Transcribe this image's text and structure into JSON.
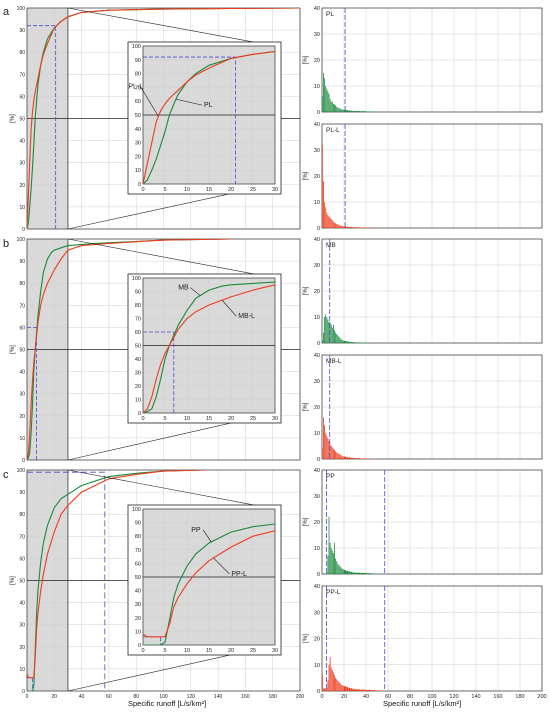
{
  "figure": {
    "x_axis_title_left": "Specific runoff [L/s/km²]",
    "x_axis_title_right": "Specific runoff [L/s/km²]"
  },
  "colors": {
    "native": "#1a8a3c",
    "lagged": "#ee3b1c",
    "dashed": "#4a4ad8",
    "shade": "#d9d9d9",
    "grid": "#cfcfcf"
  },
  "chart_data": [
    {
      "type": "line",
      "panel": "a",
      "ylabel": "[%]",
      "xlim": [
        0,
        200
      ],
      "ylim": [
        0,
        100
      ],
      "xticks": [
        0,
        20,
        40,
        60,
        80,
        100,
        120,
        140,
        160,
        180,
        200
      ],
      "yticks": [
        0,
        10,
        20,
        30,
        40,
        50,
        60,
        70,
        80,
        90,
        100
      ],
      "shaded_range": [
        0,
        30
      ],
      "guide": {
        "x": 21,
        "y": 92
      },
      "series": [
        {
          "name": "PL",
          "color": "#1a8a3c",
          "x": [
            0,
            1,
            2,
            3,
            4,
            5,
            6,
            7,
            8,
            10,
            12,
            15,
            20,
            25,
            30,
            40,
            60,
            100,
            150,
            200
          ],
          "y": [
            0,
            3,
            10,
            18,
            28,
            38,
            50,
            58,
            65,
            74,
            80,
            86,
            91,
            94,
            96,
            98,
            99,
            99.5,
            99.8,
            100
          ]
        },
        {
          "name": "PL-L",
          "color": "#ee3b1c",
          "x": [
            0,
            1,
            2,
            3,
            4,
            5,
            6,
            8,
            10,
            12,
            15,
            20,
            25,
            30,
            40,
            60,
            100,
            150,
            200
          ],
          "y": [
            0,
            15,
            30,
            45,
            53,
            58,
            62,
            68,
            74,
            79,
            84,
            91,
            94,
            96,
            98,
            99,
            99.5,
            99.8,
            100
          ]
        }
      ],
      "inset": {
        "xlim": [
          0,
          30
        ],
        "ylim": [
          0,
          100
        ],
        "xticks": [
          0,
          5,
          10,
          15,
          20,
          25,
          30
        ],
        "yticks": [
          0,
          10,
          20,
          30,
          40,
          50,
          60,
          70,
          80,
          90,
          100
        ],
        "labels": [
          "PL-L",
          "PL"
        ],
        "guide": {
          "x": 21,
          "y": 92
        }
      }
    },
    {
      "type": "line",
      "panel": "b",
      "ylabel": "[%]",
      "xlim": [
        0,
        200
      ],
      "ylim": [
        0,
        100
      ],
      "xticks": [
        0,
        20,
        40,
        60,
        80,
        100,
        120,
        140,
        160,
        180,
        200
      ],
      "yticks": [
        0,
        10,
        20,
        30,
        40,
        50,
        60,
        70,
        80,
        90,
        100
      ],
      "shaded_range": [
        0,
        30
      ],
      "guide": {
        "x": 7,
        "y": 60
      },
      "series": [
        {
          "name": "MB",
          "color": "#1a8a3c",
          "x": [
            0,
            1,
            2,
            3,
            4,
            5,
            6,
            8,
            10,
            12,
            15,
            18,
            20,
            25,
            30,
            50,
            100,
            150
          ],
          "y": [
            0,
            1,
            3,
            12,
            25,
            40,
            50,
            65,
            76,
            85,
            91,
            94,
            95,
            96,
            97,
            98,
            99.5,
            100
          ]
        },
        {
          "name": "MB-L",
          "color": "#ee3b1c",
          "x": [
            0,
            1,
            2,
            3,
            4,
            5,
            6,
            8,
            10,
            12,
            15,
            20,
            25,
            30,
            40,
            60,
            100,
            150
          ],
          "y": [
            0,
            3,
            12,
            25,
            36,
            44,
            50,
            62,
            70,
            75,
            80,
            86,
            91,
            95,
            97,
            98,
            99.5,
            100
          ]
        }
      ],
      "inset": {
        "xlim": [
          0,
          30
        ],
        "ylim": [
          0,
          100
        ],
        "xticks": [
          0,
          5,
          10,
          15,
          20,
          25,
          30
        ],
        "yticks": [
          0,
          10,
          20,
          30,
          40,
          50,
          60,
          70,
          80,
          90,
          100
        ],
        "labels": [
          "MB",
          "MB-L"
        ],
        "guide": {
          "x": 7,
          "y": 60
        }
      }
    },
    {
      "type": "line",
      "panel": "c",
      "ylabel": "[%]",
      "xlim": [
        0,
        200
      ],
      "ylim": [
        0,
        100
      ],
      "xticks": [
        0,
        20,
        40,
        60,
        80,
        100,
        120,
        140,
        160,
        180,
        200
      ],
      "yticks": [
        0,
        10,
        20,
        30,
        40,
        50,
        60,
        70,
        80,
        90,
        100
      ],
      "shaded_range": [
        0,
        30
      ],
      "guide": {
        "x": 4,
        "y": 6,
        "x2": 57,
        "y2": 99
      },
      "series": [
        {
          "name": "PP",
          "color": "#1a8a3c",
          "x": [
            0,
            1,
            2,
            3,
            4,
            5,
            6,
            7,
            8,
            10,
            12,
            15,
            20,
            25,
            30,
            40,
            60,
            80,
            100,
            130
          ],
          "y": [
            0,
            0,
            0,
            0,
            0,
            2,
            18,
            35,
            45,
            58,
            67,
            75,
            83,
            87,
            89,
            93,
            97,
            98.5,
            99.5,
            100
          ]
        },
        {
          "name": "PP-L",
          "color": "#ee3b1c",
          "x": [
            0,
            1,
            2,
            3,
            4,
            5,
            6,
            7,
            8,
            10,
            12,
            15,
            20,
            25,
            30,
            40,
            60,
            80,
            100,
            130
          ],
          "y": [
            8,
            6,
            6,
            6,
            6,
            6,
            15,
            28,
            35,
            45,
            53,
            62,
            72,
            80,
            84,
            90,
            96,
            98,
            99.5,
            100
          ]
        }
      ],
      "inset": {
        "xlim": [
          0,
          30
        ],
        "ylim": [
          0,
          100
        ],
        "xticks": [
          0,
          5,
          10,
          15,
          20,
          25,
          30
        ],
        "yticks": [
          0,
          10,
          20,
          30,
          40,
          50,
          60,
          70,
          80,
          90,
          100
        ],
        "labels": [
          "PP",
          "PP-L"
        ],
        "guide": {
          "x": 4,
          "y": 6
        }
      }
    },
    {
      "type": "bar",
      "panel": "PL",
      "label": "PL",
      "color": "#1a8a3c",
      "ylabel": "[%]",
      "xlim": [
        0,
        200
      ],
      "ylim": [
        0,
        40
      ],
      "xticks": [
        0,
        20,
        40,
        60,
        80,
        100,
        120,
        140,
        160,
        180,
        200
      ],
      "yticks": [
        0,
        10,
        20,
        30,
        40
      ],
      "vlines": [
        21
      ],
      "bins": [
        0,
        1,
        2,
        3,
        4,
        5,
        6,
        7,
        8,
        9,
        10,
        11,
        12,
        13,
        14,
        15,
        16,
        17,
        18,
        19,
        20,
        22,
        24,
        26,
        28,
        30,
        35,
        40,
        45,
        50
      ],
      "values": [
        6,
        15,
        13,
        10,
        9,
        8,
        7,
        5,
        4,
        4,
        3,
        3,
        2.5,
        2,
        1.8,
        1.5,
        1.3,
        1.1,
        1,
        0.9,
        0.8,
        0.7,
        0.6,
        0.5,
        0.4,
        0.35,
        0.3,
        0.2,
        0.15,
        0.1
      ]
    },
    {
      "type": "bar",
      "panel": "PL-L",
      "label": "PL-L",
      "color": "#ee3b1c",
      "ylabel": "[%]",
      "xlim": [
        0,
        200
      ],
      "ylim": [
        0,
        40
      ],
      "xticks": [
        0,
        20,
        40,
        60,
        80,
        100,
        120,
        140,
        160,
        180,
        200
      ],
      "yticks": [
        0,
        10,
        20,
        30,
        40
      ],
      "vlines": [
        21
      ],
      "bins": [
        0,
        1,
        2,
        3,
        4,
        5,
        6,
        7,
        8,
        9,
        10,
        11,
        12,
        13,
        14,
        15,
        16,
        17,
        18,
        19,
        20,
        22,
        24,
        26,
        28,
        30,
        35,
        40,
        45,
        50
      ],
      "values": [
        32,
        18,
        10,
        8,
        6,
        5,
        4.5,
        4,
        3.5,
        3,
        2.5,
        2,
        1.8,
        1.6,
        1.4,
        1.2,
        1,
        0.9,
        0.8,
        0.7,
        0.6,
        0.5,
        0.4,
        0.35,
        0.3,
        0.25,
        0.2,
        0.15,
        0.1,
        0.05
      ]
    },
    {
      "type": "bar",
      "panel": "MB",
      "label": "MB",
      "color": "#1a8a3c",
      "ylabel": "[%]",
      "xlim": [
        0,
        200
      ],
      "ylim": [
        0,
        40
      ],
      "xticks": [
        0,
        20,
        40,
        60,
        80,
        100,
        120,
        140,
        160,
        180,
        200
      ],
      "yticks": [
        0,
        10,
        20,
        30,
        40
      ],
      "vlines": [
        7
      ],
      "bins": [
        0,
        1,
        2,
        3,
        4,
        5,
        6,
        7,
        8,
        9,
        10,
        11,
        12,
        13,
        14,
        15,
        16,
        17,
        18,
        19,
        20,
        22,
        24,
        26,
        28,
        30,
        35,
        40,
        45
      ],
      "values": [
        1,
        4,
        10,
        11,
        10,
        9,
        8,
        8,
        7,
        6,
        7,
        5,
        4,
        3.5,
        3,
        2.5,
        2,
        1.5,
        1.2,
        1,
        0.8,
        0.6,
        0.5,
        0.4,
        0.3,
        0.2,
        0.15,
        0.1,
        0.05
      ]
    },
    {
      "type": "bar",
      "panel": "MB-L",
      "label": "MB-L",
      "color": "#ee3b1c",
      "ylabel": "[%]",
      "xlim": [
        0,
        200
      ],
      "ylim": [
        0,
        40
      ],
      "xticks": [
        0,
        20,
        40,
        60,
        80,
        100,
        120,
        140,
        160,
        180,
        200
      ],
      "yticks": [
        0,
        10,
        20,
        30,
        40
      ],
      "vlines": [
        7
      ],
      "bins": [
        0,
        1,
        2,
        3,
        4,
        5,
        6,
        7,
        8,
        9,
        10,
        11,
        12,
        13,
        14,
        15,
        16,
        17,
        18,
        19,
        20,
        22,
        24,
        26,
        28,
        30,
        35,
        40,
        45
      ],
      "values": [
        4,
        16,
        13,
        10,
        9,
        8,
        7,
        6,
        5,
        4.5,
        4,
        3.5,
        3,
        2.6,
        2.2,
        2,
        1.7,
        1.5,
        1.2,
        1,
        0.9,
        0.7,
        0.6,
        0.5,
        0.4,
        0.3,
        0.2,
        0.15,
        0.1
      ]
    },
    {
      "type": "bar",
      "panel": "PP",
      "label": "PP",
      "color": "#1a8a3c",
      "ylabel": "[%]",
      "xlim": [
        0,
        200
      ],
      "ylim": [
        0,
        40
      ],
      "xticks": [
        0,
        20,
        40,
        60,
        80,
        100,
        120,
        140,
        160,
        180,
        200
      ],
      "yticks": [
        0,
        10,
        20,
        30,
        40
      ],
      "vlines": [
        4,
        57
      ],
      "bins": [
        0,
        1,
        2,
        3,
        4,
        5,
        6,
        7,
        8,
        9,
        10,
        11,
        12,
        13,
        14,
        15,
        16,
        17,
        18,
        19,
        20,
        22,
        24,
        26,
        28,
        30,
        35,
        40,
        45,
        50
      ],
      "values": [
        0,
        0,
        0,
        0,
        0.5,
        7,
        22,
        12,
        10,
        9,
        8,
        12,
        6,
        5,
        4,
        3.5,
        3,
        2.5,
        2,
        1.8,
        1.5,
        1.2,
        1,
        0.8,
        0.6,
        0.5,
        0.4,
        0.3,
        0.2,
        0.1
      ]
    },
    {
      "type": "bar",
      "panel": "PP-L",
      "label": "PP-L",
      "color": "#ee3b1c",
      "ylabel": "[%]",
      "xlim": [
        0,
        200
      ],
      "ylim": [
        0,
        40
      ],
      "xticks": [
        0,
        20,
        40,
        60,
        80,
        100,
        120,
        140,
        160,
        180,
        200
      ],
      "yticks": [
        0,
        10,
        20,
        30,
        40
      ],
      "vlines": [
        4,
        57
      ],
      "bins": [
        0,
        1,
        2,
        3,
        4,
        5,
        6,
        7,
        8,
        9,
        10,
        11,
        12,
        13,
        14,
        15,
        16,
        17,
        18,
        19,
        20,
        22,
        24,
        26,
        28,
        30,
        35,
        40,
        45,
        50,
        55
      ],
      "values": [
        6,
        1,
        1,
        1,
        1,
        4,
        10,
        13,
        9,
        8,
        7,
        6,
        5,
        4.5,
        4,
        3.5,
        3,
        2.5,
        2.2,
        2,
        1.8,
        1.5,
        1.2,
        1,
        0.8,
        0.6,
        0.5,
        0.4,
        0.3,
        0.2,
        0.1
      ]
    }
  ]
}
